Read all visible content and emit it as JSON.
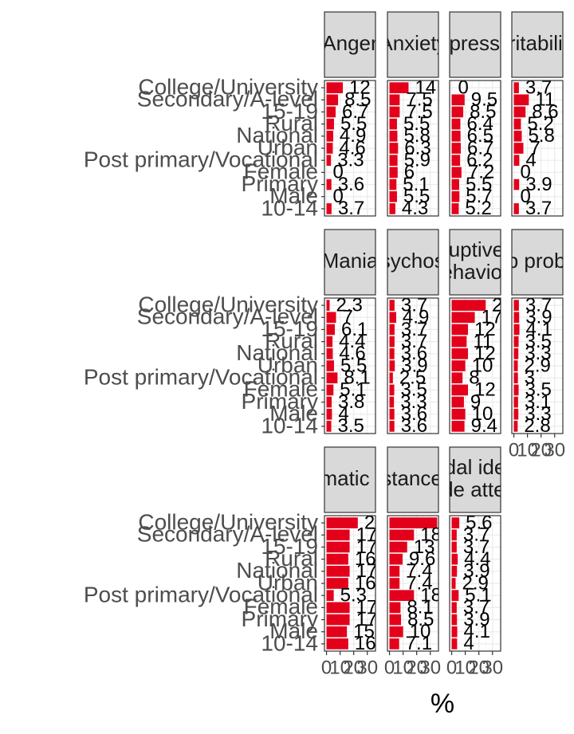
{
  "chart_data": {
    "type": "bar",
    "orientation": "horizontal",
    "x_label": "%",
    "categories": [
      "College/University",
      "Secondary/A-level",
      "15-19",
      "Rural",
      "National",
      "Urban",
      "Post primary/Vocational",
      "Female",
      "Primary",
      "Male",
      "10-14"
    ],
    "color": "#e3001b",
    "grid": true,
    "xlim": [
      -1.5,
      36
    ],
    "xticks": [
      0,
      10,
      20,
      30
    ],
    "facets": [
      {
        "title": [
          "Anger"
        ],
        "values": [
          12,
          8.5,
          6.7,
          5.5,
          4.9,
          4.6,
          3.3,
          0,
          3.6,
          0,
          3.7
        ]
      },
      {
        "title": [
          "Anxiety"
        ],
        "values": [
          14,
          7.5,
          7.5,
          5.5,
          5.8,
          6.3,
          5.9,
          6,
          5.1,
          5.5,
          4.3
        ]
      },
      {
        "title": [
          "Depression"
        ],
        "values": [
          0,
          9.5,
          8.5,
          6.4,
          6.5,
          6.7,
          6.2,
          7.2,
          5.5,
          5.7,
          5.2
        ]
      },
      {
        "title": [
          "Irritability"
        ],
        "values": [
          3.7,
          11,
          8.6,
          5.2,
          5.8,
          7,
          4,
          0,
          3.9,
          0,
          3.7
        ]
      },
      {
        "title": [
          "Mania"
        ],
        "values": [
          2.3,
          7,
          6.1,
          4.4,
          4.6,
          5.5,
          8.1,
          5.1,
          3.8,
          4,
          3.5
        ]
      },
      {
        "title": [
          "Psychosis"
        ],
        "values": [
          3.7,
          4.9,
          3.7,
          3.7,
          3.6,
          3.9,
          2.5,
          3.5,
          3.3,
          3.6,
          3.6
        ]
      },
      {
        "title": [
          "Disruptive the",
          "behaviour"
        ],
        "values": [
          25,
          17,
          12,
          11,
          12,
          10,
          8,
          12,
          9,
          10,
          9.4
        ]
      },
      {
        "title": [
          "Sleep problems"
        ],
        "values": [
          3.7,
          3.9,
          4.1,
          3.5,
          3.3,
          2.9,
          3,
          3.5,
          3.1,
          3.3,
          2.8
        ]
      },
      {
        "title": [
          "Psychosomatic symptoms"
        ],
        "values": [
          23,
          17,
          17,
          16,
          17,
          16,
          5.3,
          17,
          17,
          15,
          16
        ]
      },
      {
        "title": [
          "Substance use"
        ],
        "values": [
          35,
          18,
          13,
          9.6,
          7.4,
          7.4,
          18,
          8.1,
          8.5,
          10,
          7.1
        ]
      },
      {
        "title": [
          "Suicidal ideation",
          "suicide attempts"
        ],
        "values": [
          5.6,
          3.7,
          3.7,
          4.4,
          3.9,
          2.9,
          5.1,
          3.7,
          3.9,
          4.1,
          4
        ]
      }
    ]
  }
}
